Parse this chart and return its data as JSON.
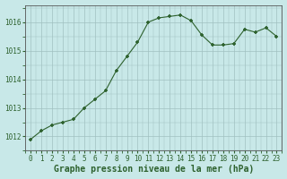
{
  "x": [
    0,
    1,
    2,
    3,
    4,
    5,
    6,
    7,
    8,
    9,
    10,
    11,
    12,
    13,
    14,
    15,
    16,
    17,
    18,
    19,
    20,
    21,
    22,
    23
  ],
  "y": [
    1011.9,
    1012.2,
    1012.4,
    1012.5,
    1012.6,
    1013.0,
    1013.3,
    1013.6,
    1014.3,
    1014.8,
    1015.3,
    1016.0,
    1016.15,
    1016.2,
    1016.25,
    1016.05,
    1015.55,
    1015.2,
    1015.2,
    1015.25,
    1015.75,
    1015.65,
    1015.8,
    1015.5
  ],
  "line_color": "#2d612d",
  "marker": "+",
  "marker_size": 3.5,
  "marker_lw": 1.2,
  "background_color": "#c8e8e8",
  "grid_color": "#a0c0c0",
  "xlabel": "Graphe pression niveau de la mer (hPa)",
  "xlabel_fontsize": 7,
  "ylabel_ticks": [
    1012,
    1013,
    1014,
    1015,
    1016
  ],
  "ylim": [
    1011.5,
    1016.6
  ],
  "xlim": [
    -0.5,
    23.5
  ],
  "xtick_labels": [
    "0",
    "1",
    "2",
    "3",
    "4",
    "5",
    "6",
    "7",
    "8",
    "9",
    "10",
    "11",
    "12",
    "13",
    "14",
    "15",
    "16",
    "17",
    "18",
    "19",
    "20",
    "21",
    "22",
    "23"
  ],
  "tick_fontsize": 5.5,
  "line_width": 0.8,
  "spine_color": "#555555",
  "tick_color": "#2d612d",
  "label_color": "#2d612d"
}
